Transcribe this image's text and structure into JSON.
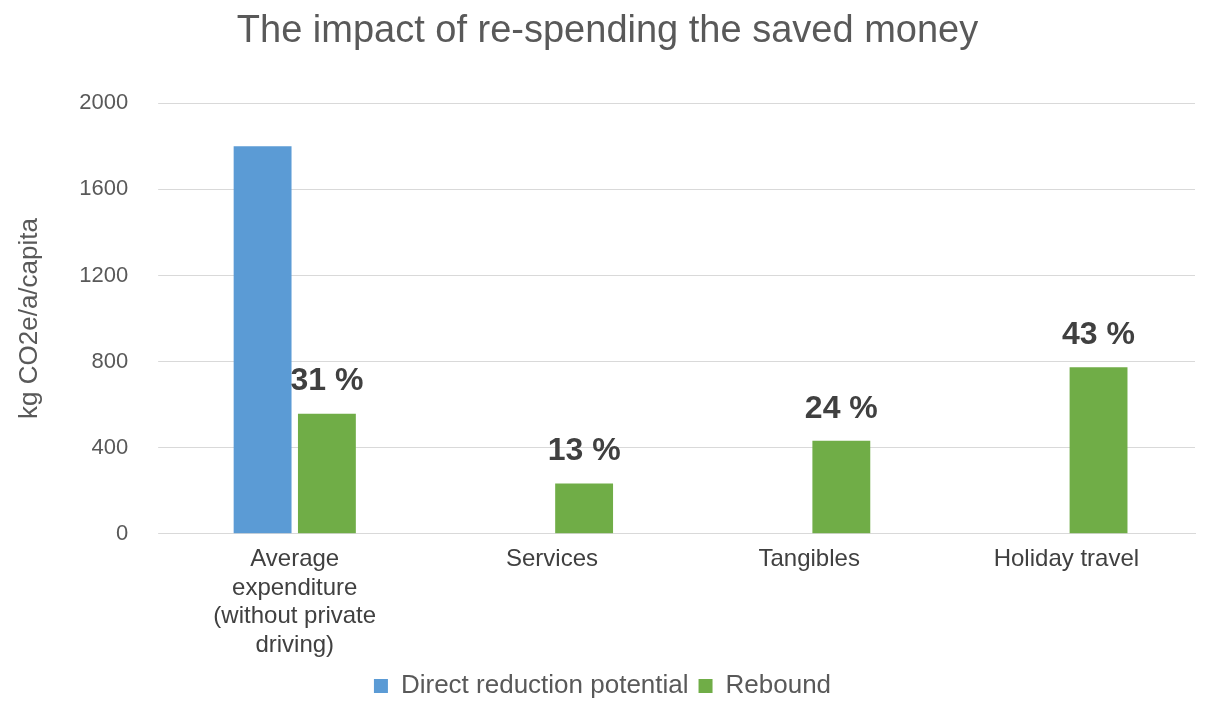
{
  "chart_data": {
    "type": "bar",
    "title": "The impact of re-spending the saved money",
    "ylabel": "kg CO2e/a/capita",
    "categories": [
      "Average expenditure (without private driving)",
      "Services",
      "Tangibles",
      "Holiday travel"
    ],
    "series": [
      {
        "name": "Direct reduction potential",
        "color": "#5b9bd5",
        "values": [
          1800,
          null,
          null,
          null
        ]
      },
      {
        "name": "Rebound",
        "color": "#70ad47",
        "values": [
          558,
          234,
          432,
          774
        ]
      }
    ],
    "annotations": [
      {
        "text": "31 %",
        "x": "Average expenditure (without private driving)",
        "y": 558
      },
      {
        "text": "13 %",
        "x": "Services",
        "y": 234
      },
      {
        "text": "24 %",
        "x": "Tangibles",
        "y": 432
      },
      {
        "text": "43 %",
        "x": "Holiday travel",
        "y": 774
      }
    ],
    "ylim": [
      0,
      2000
    ],
    "yticks": [
      0,
      400,
      800,
      1200,
      1600,
      2000
    ],
    "grid": "y",
    "legend": "bottom"
  }
}
